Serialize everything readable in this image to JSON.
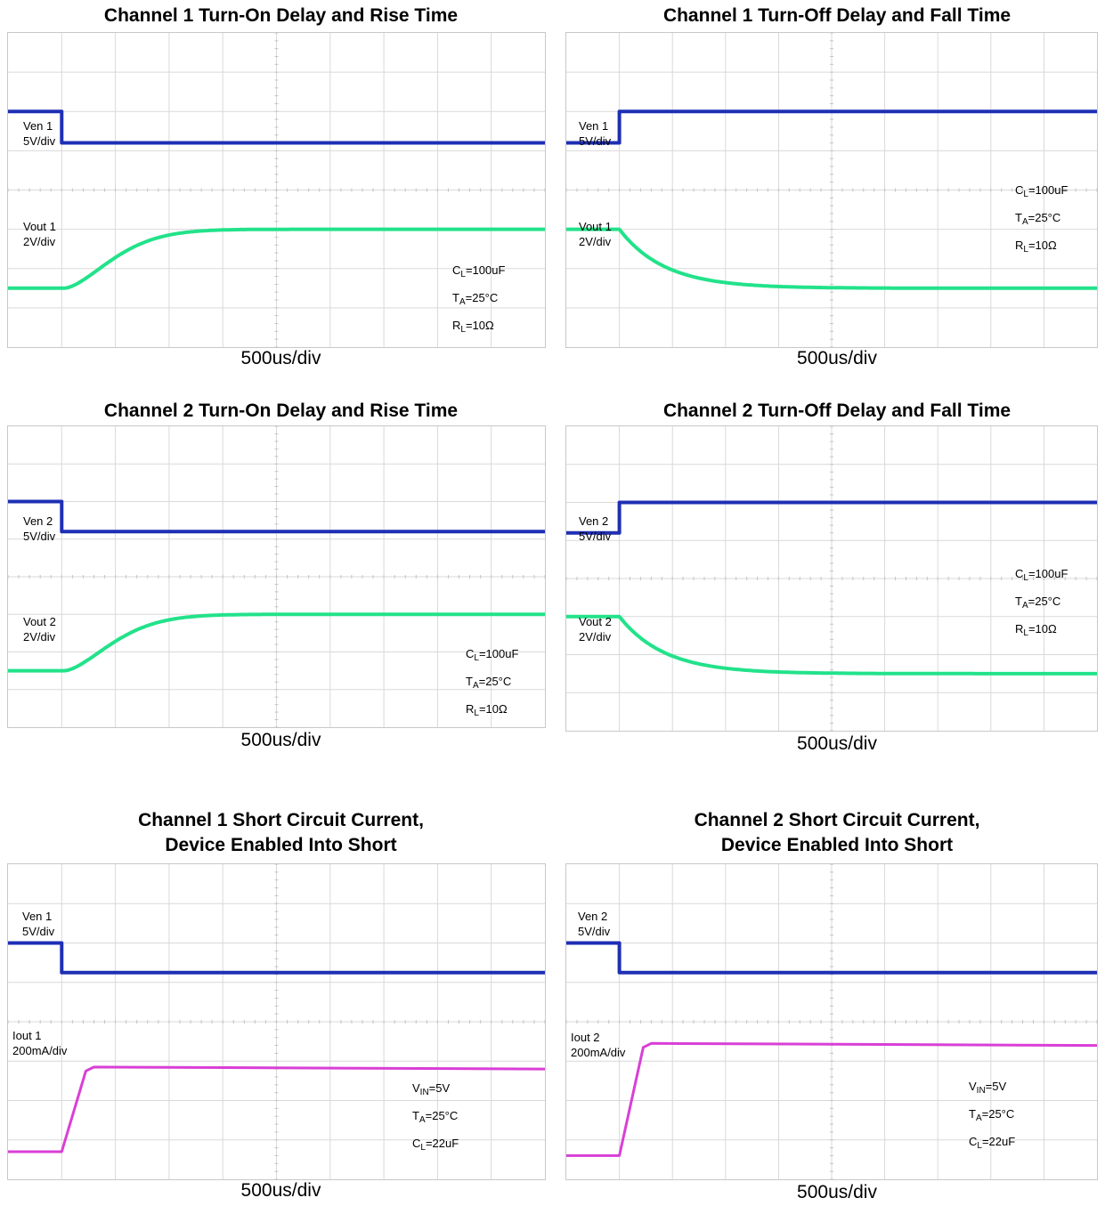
{
  "colors": {
    "enable": "#1e2fb4",
    "vout": "#22e28a",
    "iout": "#d93fd6",
    "grid": "#d9d9d9"
  },
  "panels": [
    {
      "title": [
        "Channel 1 Turn-On Delay and Rise Time"
      ],
      "xlabel": "500us/div",
      "labels": [
        [
          "Ven 1",
          "5V/div"
        ],
        [
          "Vout 1",
          "2V/div"
        ]
      ],
      "conditions": [
        [
          "C",
          "L",
          "=100uF"
        ],
        [
          "T",
          "A",
          "=25°C"
        ],
        [
          "R",
          "L",
          "=10Ω"
        ]
      ],
      "chart_data": {
        "type": "line",
        "x_divisions": 10,
        "y_divisions": 8,
        "series": [
          {
            "kind": "enable",
            "shape": "step_down",
            "x": [
              0,
              1.0,
              1.0,
              10
            ],
            "y": [
              6.0,
              6.0,
              5.2,
              5.2
            ]
          },
          {
            "kind": "output",
            "shape": "rise",
            "t0": 1.05,
            "y_start": 1.5,
            "y_end": 3.0
          }
        ]
      }
    },
    {
      "title": [
        "Channel 1 Turn-Off Delay and Fall Time"
      ],
      "xlabel": "500us/div",
      "labels": [
        [
          "Ven 1",
          "5V/div"
        ],
        [
          "Vout 1",
          "2V/div"
        ]
      ],
      "conditions": [
        [
          "C",
          "L",
          "=100uF"
        ],
        [
          "T",
          "A",
          "=25°C"
        ],
        [
          "R",
          "L",
          "=10Ω"
        ]
      ],
      "chart_data": {
        "type": "line",
        "x_divisions": 10,
        "y_divisions": 8,
        "series": [
          {
            "kind": "enable",
            "shape": "step_up",
            "x": [
              0,
              1.0,
              1.0,
              10
            ],
            "y": [
              5.2,
              5.2,
              6.0,
              6.0
            ]
          },
          {
            "kind": "output",
            "shape": "fall",
            "t0": 1.0,
            "y_start": 3.0,
            "y_end": 1.5
          }
        ]
      }
    },
    {
      "title": [
        "Channel 2 Turn-On Delay and Rise Time"
      ],
      "xlabel": "500us/div",
      "labels": [
        [
          "Ven 2",
          "5V/div"
        ],
        [
          "Vout 2",
          "2V/div"
        ]
      ],
      "conditions": [
        [
          "C",
          "L",
          "=100uF"
        ],
        [
          "T",
          "A",
          "=25°C"
        ],
        [
          "R",
          "L",
          "=10Ω"
        ]
      ],
      "chart_data": {
        "type": "line",
        "x_divisions": 10,
        "y_divisions": 8,
        "series": [
          {
            "kind": "enable",
            "shape": "step_down",
            "x": [
              0,
              1.0,
              1.0,
              10
            ],
            "y": [
              6.0,
              6.0,
              5.2,
              5.2
            ]
          },
          {
            "kind": "output",
            "shape": "rise",
            "t0": 1.05,
            "y_start": 1.5,
            "y_end": 3.0
          }
        ]
      }
    },
    {
      "title": [
        "Channel 2 Turn-Off Delay and Fall Time"
      ],
      "xlabel": "500us/div",
      "labels": [
        [
          "Ven 2",
          "5V/div"
        ],
        [
          "Vout 2",
          "2V/div"
        ]
      ],
      "conditions": [
        [
          "C",
          "L",
          "=100uF"
        ],
        [
          "T",
          "A",
          "=25°C"
        ],
        [
          "R",
          "L",
          "=10Ω"
        ]
      ],
      "chart_data": {
        "type": "line",
        "x_divisions": 10,
        "y_divisions": 8,
        "series": [
          {
            "kind": "enable",
            "shape": "step_up",
            "x": [
              0,
              1.0,
              1.0,
              10
            ],
            "y": [
              5.2,
              5.2,
              6.0,
              6.0
            ]
          },
          {
            "kind": "output",
            "shape": "fall",
            "t0": 1.0,
            "y_start": 3.0,
            "y_end": 1.5
          }
        ]
      }
    },
    {
      "title": [
        "Channel 1 Short Circuit Current,",
        "Device Enabled Into Short"
      ],
      "xlabel": "500us/div",
      "labels": [
        [
          "Ven 1",
          "5V/div"
        ],
        [
          "Iout 1",
          "200mA/div"
        ]
      ],
      "conditions": [
        [
          "V",
          "IN",
          "=5V"
        ],
        [
          "T",
          "A",
          "=25°C"
        ],
        [
          "C",
          "L",
          "=22uF"
        ]
      ],
      "chart_data": {
        "type": "line",
        "x_divisions": 10,
        "y_divisions": 8,
        "series": [
          {
            "kind": "enable",
            "shape": "step_down",
            "x": [
              0,
              1.0,
              1.0,
              10
            ],
            "y": [
              6.0,
              6.0,
              5.25,
              5.25
            ]
          },
          {
            "kind": "current",
            "shape": "ramp",
            "x": [
              0,
              1.0,
              1.45,
              1.6,
              10
            ],
            "y": [
              0.7,
              0.7,
              2.75,
              2.85,
              2.8
            ]
          }
        ]
      }
    },
    {
      "title": [
        "Channel 2 Short Circuit Current,",
        "Device Enabled Into Short"
      ],
      "xlabel": "500us/div",
      "labels": [
        [
          "Ven 2",
          "5V/div"
        ],
        [
          "Iout 2",
          "200mA/div"
        ]
      ],
      "conditions": [
        [
          "V",
          "IN",
          "=5V"
        ],
        [
          "T",
          "A",
          "=25°C"
        ],
        [
          "C",
          "L",
          "=22uF"
        ]
      ],
      "chart_data": {
        "type": "line",
        "x_divisions": 10,
        "y_divisions": 8,
        "series": [
          {
            "kind": "enable",
            "shape": "step_down",
            "x": [
              0,
              1.0,
              1.0,
              10
            ],
            "y": [
              6.0,
              6.0,
              5.25,
              5.25
            ]
          },
          {
            "kind": "current",
            "shape": "ramp",
            "x": [
              0,
              1.0,
              1.45,
              1.6,
              10
            ],
            "y": [
              0.6,
              0.6,
              3.35,
              3.45,
              3.4
            ]
          }
        ]
      }
    }
  ]
}
